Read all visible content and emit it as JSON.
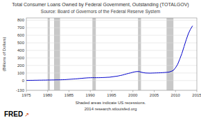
{
  "chart_data": {
    "type": "line",
    "title": "Total Consumer Loans Owned by Federal Government, Outstanding (TOTALGOV)",
    "subtitle": "Source: Board of Governors of the Federal Reserve System",
    "ylabel": "(Billions of Dollars)",
    "annotations": [
      "Shaded areas indicate US recessions.",
      "2014 research.stlouisfed.org",
      "FRED",
      "↗"
    ],
    "xlim": [
      1975,
      2015
    ],
    "ylim": [
      -130,
      830
    ],
    "xticks": [
      1975,
      1980,
      1985,
      1990,
      1995,
      2000,
      2005,
      2010,
      2015
    ],
    "yticks": [
      -130,
      0,
      100,
      200,
      300,
      400,
      500,
      600,
      700,
      800
    ],
    "grid": true,
    "recession_bands": {
      "color": "#c8c8c8",
      "ranges": [
        [
          1980.0,
          1980.5
        ],
        [
          1981.5,
          1982.9
        ],
        [
          1990.5,
          1991.3
        ],
        [
          2001.2,
          2001.9
        ],
        [
          2007.9,
          2009.5
        ]
      ]
    },
    "x": [
      1975.0,
      1975.5,
      1976.0,
      1976.5,
      1977.0,
      1977.5,
      1978.0,
      1978.5,
      1979.0,
      1979.5,
      1980.0,
      1980.5,
      1981.0,
      1981.5,
      1982.0,
      1982.5,
      1983.0,
      1983.5,
      1984.0,
      1984.5,
      1985.0,
      1985.5,
      1986.0,
      1986.5,
      1987.0,
      1987.5,
      1988.0,
      1988.5,
      1989.0,
      1989.5,
      1990.0,
      1990.5,
      1991.0,
      1991.5,
      1992.0,
      1992.5,
      1993.0,
      1993.5,
      1994.0,
      1994.5,
      1995.0,
      1995.5,
      1996.0,
      1996.5,
      1997.0,
      1997.5,
      1998.0,
      1998.5,
      1999.0,
      1999.5,
      2000.0,
      2000.5,
      2001.0,
      2001.5,
      2002.0,
      2002.5,
      2003.0,
      2003.5,
      2004.0,
      2004.5,
      2005.0,
      2005.5,
      2006.0,
      2006.5,
      2007.0,
      2007.5,
      2008.0,
      2008.5,
      2009.0,
      2009.5,
      2010.0,
      2010.5,
      2011.0,
      2011.5,
      2012.0,
      2012.5,
      2013.0,
      2013.5,
      2014.0
    ],
    "series": [
      {
        "color": "#0000cc",
        "values": [
          2,
          2,
          3,
          3,
          4,
          4,
          5,
          5,
          6,
          6,
          7,
          7,
          8,
          8,
          9,
          9,
          10,
          11,
          12,
          14,
          16,
          18,
          20,
          22,
          24,
          27,
          29,
          32,
          34,
          36,
          37,
          38,
          38,
          38,
          38,
          39,
          40,
          41,
          43,
          44,
          48,
          52,
          56,
          60,
          66,
          72,
          80,
          88,
          95,
          102,
          110,
          116,
          120,
          118,
          110,
          104,
          100,
          99,
          98,
          99,
          100,
          101,
          102,
          103,
          105,
          107,
          109,
          112,
          122,
          135,
          170,
          215,
          285,
          360,
          450,
          540,
          620,
          680,
          725
        ]
      }
    ]
  }
}
